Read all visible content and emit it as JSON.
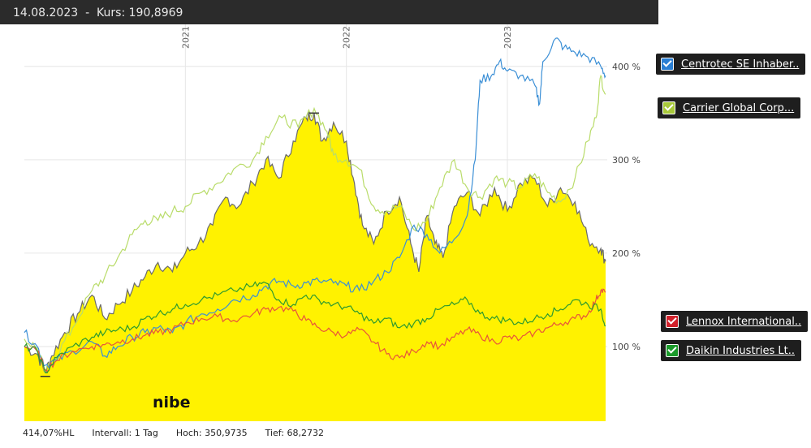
{
  "header": {
    "date": "14.08.2023",
    "separator": "-",
    "price_label": "Kurs:",
    "price_value": "190,8969"
  },
  "footer": {
    "change": "414,07%HL",
    "interval": "Intervall: 1 Tag",
    "high": "Hoch: 350,9735",
    "low": "Tief: 68,2732"
  },
  "legend": [
    {
      "label": "Centrotec SE Inhaber..",
      "color": "#2a7fd4",
      "checked": true
    },
    {
      "label": "Carrier Global Corp...",
      "color": "#a8c93a",
      "checked": true
    },
    {
      "label": "Lennox International..",
      "color": "#d0202a",
      "checked": true
    },
    {
      "label": "Daikin Industries Lt..",
      "color": "#1a9a2a",
      "checked": true
    }
  ],
  "chart_data": {
    "type": "area",
    "main_series_label": "nibe",
    "x_year_labels": [
      "2021",
      "2022",
      "2023"
    ],
    "y_ticks": [
      "100 %",
      "200 %",
      "300 %",
      "400 %"
    ],
    "ylim": [
      20,
      445
    ],
    "xlim": [
      2020.0,
      2023.62
    ],
    "grid": true,
    "colors": {
      "nibe_fill": "#fff200",
      "nibe_line": "#6b6b6b",
      "centrotec": "#3b8fd6",
      "carrier": "#b9dc6a",
      "lennox": "#e8553a",
      "daikin": "#2e9a2e"
    },
    "series": [
      {
        "name": "nibe",
        "points": [
          [
            2020.0,
            100
          ],
          [
            2020.08,
            92
          ],
          [
            2020.13,
            72
          ],
          [
            2020.17,
            90
          ],
          [
            2020.25,
            115
          ],
          [
            2020.33,
            135
          ],
          [
            2020.42,
            155
          ],
          [
            2020.5,
            130
          ],
          [
            2020.58,
            145
          ],
          [
            2020.67,
            160
          ],
          [
            2020.75,
            175
          ],
          [
            2020.83,
            190
          ],
          [
            2020.92,
            180
          ],
          [
            2021.0,
            200
          ],
          [
            2021.08,
            210
          ],
          [
            2021.17,
            230
          ],
          [
            2021.25,
            260
          ],
          [
            2021.33,
            250
          ],
          [
            2021.42,
            275
          ],
          [
            2021.5,
            300
          ],
          [
            2021.58,
            280
          ],
          [
            2021.67,
            320
          ],
          [
            2021.75,
            345
          ],
          [
            2021.8,
            350
          ],
          [
            2021.85,
            320
          ],
          [
            2021.92,
            340
          ],
          [
            2022.0,
            320
          ],
          [
            2022.05,
            275
          ],
          [
            2022.1,
            230
          ],
          [
            2022.17,
            210
          ],
          [
            2022.25,
            245
          ],
          [
            2022.33,
            260
          ],
          [
            2022.4,
            210
          ],
          [
            2022.45,
            180
          ],
          [
            2022.5,
            240
          ],
          [
            2022.55,
            210
          ],
          [
            2022.6,
            195
          ],
          [
            2022.67,
            250
          ],
          [
            2022.75,
            265
          ],
          [
            2022.83,
            240
          ],
          [
            2022.92,
            270
          ],
          [
            2023.0,
            245
          ],
          [
            2023.08,
            275
          ],
          [
            2023.17,
            280
          ],
          [
            2023.25,
            250
          ],
          [
            2023.33,
            270
          ],
          [
            2023.42,
            255
          ],
          [
            2023.5,
            215
          ],
          [
            2023.58,
            205
          ],
          [
            2023.61,
            191
          ]
        ]
      },
      {
        "name": "Centrotec SE Inhaber..",
        "points": [
          [
            2020.0,
            115
          ],
          [
            2020.08,
            100
          ],
          [
            2020.13,
            80
          ],
          [
            2020.2,
            85
          ],
          [
            2020.3,
            95
          ],
          [
            2020.42,
            105
          ],
          [
            2020.5,
            90
          ],
          [
            2020.58,
            100
          ],
          [
            2020.67,
            110
          ],
          [
            2020.75,
            115
          ],
          [
            2020.83,
            120
          ],
          [
            2020.92,
            115
          ],
          [
            2021.0,
            125
          ],
          [
            2021.1,
            135
          ],
          [
            2021.2,
            140
          ],
          [
            2021.3,
            150
          ],
          [
            2021.42,
            155
          ],
          [
            2021.5,
            165
          ],
          [
            2021.58,
            170
          ],
          [
            2021.67,
            165
          ],
          [
            2021.75,
            168
          ],
          [
            2021.83,
            170
          ],
          [
            2021.92,
            168
          ],
          [
            2022.0,
            165
          ],
          [
            2022.08,
            160
          ],
          [
            2022.17,
            170
          ],
          [
            2022.25,
            180
          ],
          [
            2022.33,
            195
          ],
          [
            2022.42,
            230
          ],
          [
            2022.5,
            220
          ],
          [
            2022.58,
            200
          ],
          [
            2022.67,
            215
          ],
          [
            2022.75,
            240
          ],
          [
            2022.8,
            300
          ],
          [
            2022.83,
            385
          ],
          [
            2022.9,
            390
          ],
          [
            2022.95,
            405
          ],
          [
            2023.0,
            395
          ],
          [
            2023.08,
            390
          ],
          [
            2023.17,
            380
          ],
          [
            2023.2,
            360
          ],
          [
            2023.22,
            405
          ],
          [
            2023.3,
            430
          ],
          [
            2023.35,
            420
          ],
          [
            2023.42,
            415
          ],
          [
            2023.5,
            410
          ],
          [
            2023.58,
            400
          ],
          [
            2023.61,
            390
          ]
        ]
      },
      {
        "name": "Carrier Global Corp...",
        "points": [
          [
            2020.0,
            108
          ],
          [
            2020.08,
            98
          ],
          [
            2020.13,
            72
          ],
          [
            2020.2,
            90
          ],
          [
            2020.3,
            120
          ],
          [
            2020.42,
            160
          ],
          [
            2020.5,
            175
          ],
          [
            2020.58,
            195
          ],
          [
            2020.67,
            220
          ],
          [
            2020.75,
            235
          ],
          [
            2020.83,
            235
          ],
          [
            2020.92,
            245
          ],
          [
            2021.0,
            250
          ],
          [
            2021.1,
            265
          ],
          [
            2021.2,
            275
          ],
          [
            2021.3,
            290
          ],
          [
            2021.42,
            300
          ],
          [
            2021.5,
            325
          ],
          [
            2021.6,
            345
          ],
          [
            2021.7,
            335
          ],
          [
            2021.8,
            355
          ],
          [
            2021.88,
            330
          ],
          [
            2021.92,
            305
          ],
          [
            2022.0,
            300
          ],
          [
            2022.08,
            290
          ],
          [
            2022.17,
            250
          ],
          [
            2022.25,
            245
          ],
          [
            2022.33,
            250
          ],
          [
            2022.42,
            225
          ],
          [
            2022.5,
            235
          ],
          [
            2022.58,
            270
          ],
          [
            2022.67,
            300
          ],
          [
            2022.75,
            270
          ],
          [
            2022.83,
            260
          ],
          [
            2022.92,
            280
          ],
          [
            2023.0,
            275
          ],
          [
            2023.08,
            270
          ],
          [
            2023.17,
            285
          ],
          [
            2023.25,
            265
          ],
          [
            2023.33,
            255
          ],
          [
            2023.42,
            280
          ],
          [
            2023.5,
            320
          ],
          [
            2023.55,
            345
          ],
          [
            2023.58,
            390
          ],
          [
            2023.61,
            370
          ]
        ]
      },
      {
        "name": "Lennox International..",
        "points": [
          [
            2020.0,
            100
          ],
          [
            2020.08,
            95
          ],
          [
            2020.13,
            75
          ],
          [
            2020.2,
            85
          ],
          [
            2020.3,
            95
          ],
          [
            2020.42,
            100
          ],
          [
            2020.5,
            102
          ],
          [
            2020.58,
            105
          ],
          [
            2020.67,
            108
          ],
          [
            2020.75,
            112
          ],
          [
            2020.83,
            115
          ],
          [
            2020.92,
            118
          ],
          [
            2021.0,
            125
          ],
          [
            2021.1,
            130
          ],
          [
            2021.2,
            132
          ],
          [
            2021.3,
            128
          ],
          [
            2021.42,
            135
          ],
          [
            2021.5,
            140
          ],
          [
            2021.58,
            142
          ],
          [
            2021.67,
            138
          ],
          [
            2021.75,
            128
          ],
          [
            2021.83,
            120
          ],
          [
            2021.92,
            115
          ],
          [
            2022.0,
            112
          ],
          [
            2022.08,
            118
          ],
          [
            2022.17,
            105
          ],
          [
            2022.25,
            92
          ],
          [
            2022.33,
            88
          ],
          [
            2022.42,
            95
          ],
          [
            2022.5,
            105
          ],
          [
            2022.58,
            100
          ],
          [
            2022.67,
            110
          ],
          [
            2022.75,
            118
          ],
          [
            2022.83,
            112
          ],
          [
            2022.92,
            105
          ],
          [
            2023.0,
            110
          ],
          [
            2023.08,
            108
          ],
          [
            2023.17,
            115
          ],
          [
            2023.25,
            120
          ],
          [
            2023.33,
            125
          ],
          [
            2023.42,
            130
          ],
          [
            2023.5,
            135
          ],
          [
            2023.55,
            150
          ],
          [
            2023.58,
            160
          ],
          [
            2023.61,
            158
          ]
        ]
      },
      {
        "name": "Daikin Industries Lt..",
        "points": [
          [
            2020.0,
            100
          ],
          [
            2020.08,
            95
          ],
          [
            2020.13,
            72
          ],
          [
            2020.2,
            88
          ],
          [
            2020.3,
            100
          ],
          [
            2020.42,
            110
          ],
          [
            2020.5,
            115
          ],
          [
            2020.58,
            118
          ],
          [
            2020.67,
            120
          ],
          [
            2020.75,
            130
          ],
          [
            2020.83,
            135
          ],
          [
            2020.92,
            140
          ],
          [
            2021.0,
            145
          ],
          [
            2021.1,
            150
          ],
          [
            2021.2,
            155
          ],
          [
            2021.3,
            160
          ],
          [
            2021.42,
            165
          ],
          [
            2021.5,
            168
          ],
          [
            2021.58,
            150
          ],
          [
            2021.67,
            145
          ],
          [
            2021.75,
            155
          ],
          [
            2021.83,
            150
          ],
          [
            2021.92,
            145
          ],
          [
            2022.0,
            142
          ],
          [
            2022.08,
            135
          ],
          [
            2022.17,
            125
          ],
          [
            2022.25,
            130
          ],
          [
            2022.33,
            120
          ],
          [
            2022.42,
            125
          ],
          [
            2022.5,
            130
          ],
          [
            2022.58,
            140
          ],
          [
            2022.67,
            145
          ],
          [
            2022.75,
            150
          ],
          [
            2022.83,
            135
          ],
          [
            2022.92,
            130
          ],
          [
            2023.0,
            128
          ],
          [
            2023.08,
            125
          ],
          [
            2023.17,
            130
          ],
          [
            2023.25,
            135
          ],
          [
            2023.33,
            140
          ],
          [
            2023.42,
            150
          ],
          [
            2023.5,
            145
          ],
          [
            2023.58,
            140
          ],
          [
            2023.61,
            122
          ]
        ]
      }
    ]
  }
}
